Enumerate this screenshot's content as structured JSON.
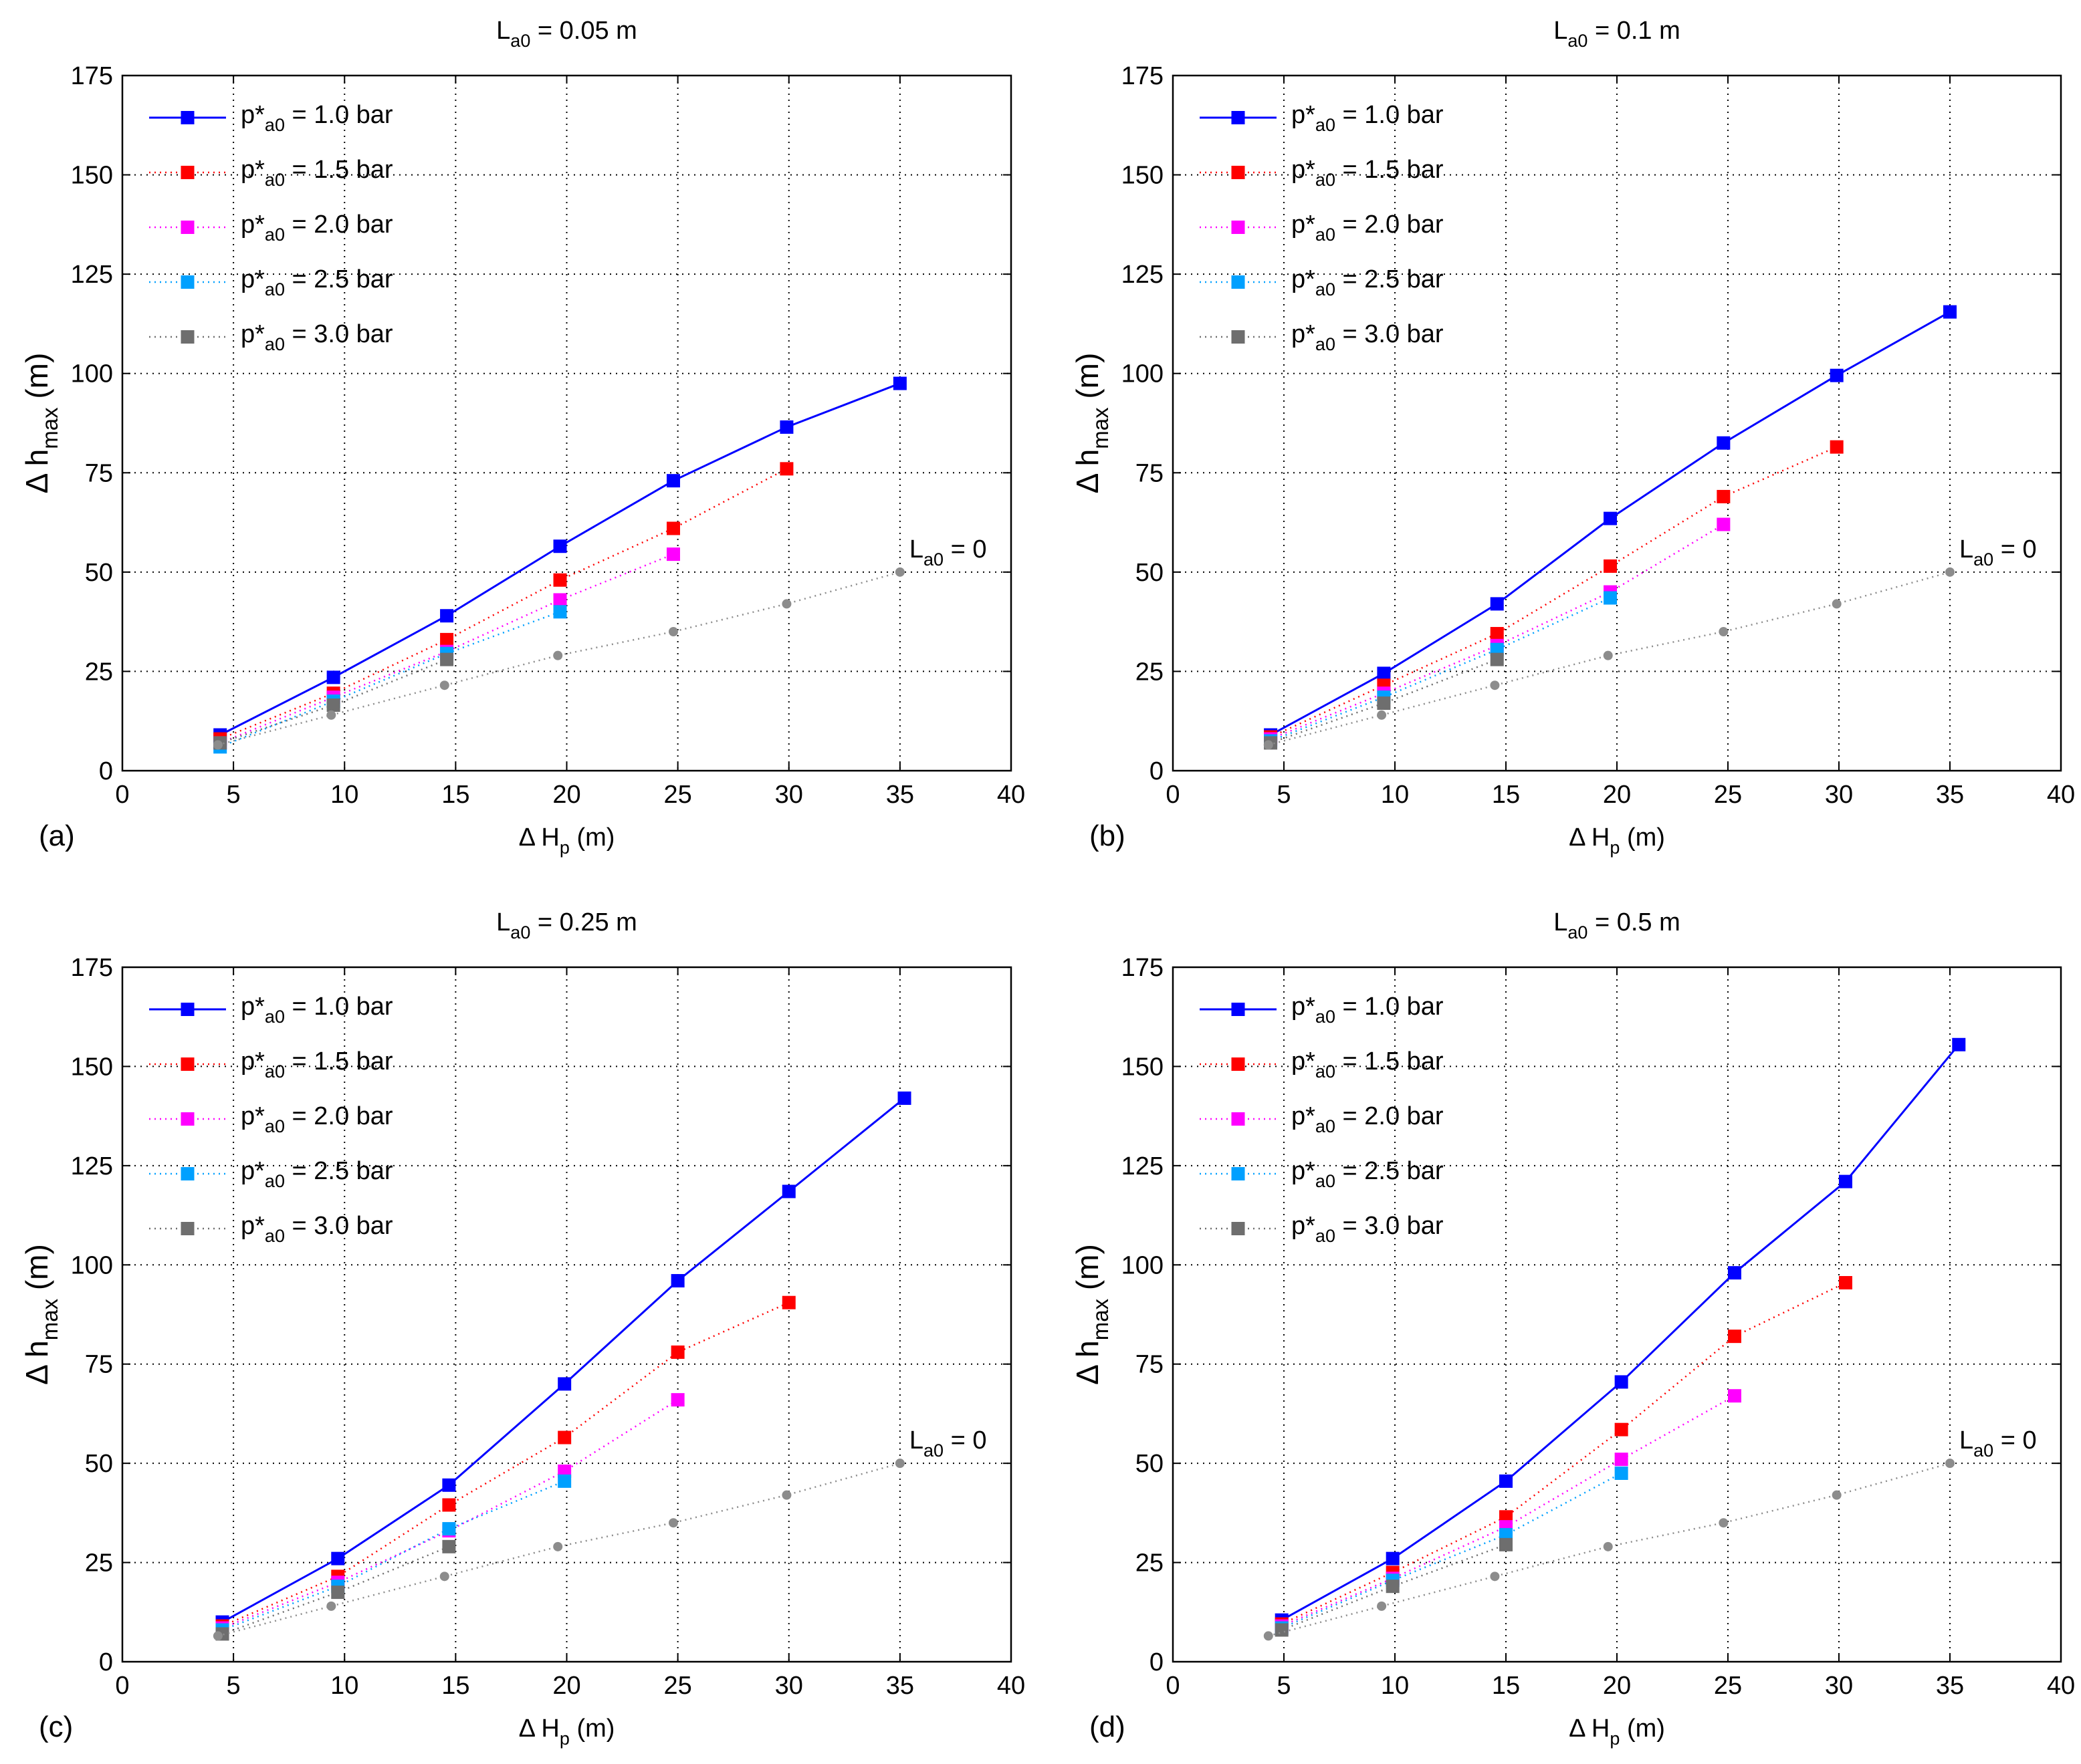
{
  "figure": {
    "panels": [
      "(a)",
      "(b)",
      "(c)",
      "(d)"
    ]
  },
  "chart_data": [
    {
      "type": "line",
      "panel_label": "(a)",
      "title": {
        "base": "L",
        "sub": "a0",
        "rest": " = 0.05 m"
      },
      "xlabel": {
        "base": "Δ H",
        "sub": "p",
        "rest": " (m)"
      },
      "ylabel": {
        "base": "Δ h",
        "sub": "max",
        "rest": " (m)"
      },
      "xlim": [
        0,
        40
      ],
      "ylim": [
        0,
        175
      ],
      "xticks": [
        "0",
        "5",
        "10",
        "15",
        "20",
        "25",
        "30",
        "35",
        "40"
      ],
      "yticks": [
        "0",
        "25",
        "50",
        "75",
        "100",
        "125",
        "150",
        "175"
      ],
      "grid": true,
      "legend_position": "top-left",
      "reference_label": {
        "base": "L",
        "sub": "a0",
        "rest": " = 0"
      },
      "series": [
        {
          "legend": {
            "base": "p*",
            "sub": "a0",
            "rest": " = 1.0 bar"
          },
          "color": "#0000ff",
          "line": "solid",
          "x": [
            4.4,
            9.5,
            14.6,
            19.7,
            24.8,
            29.9,
            35.0
          ],
          "y": [
            9,
            23.5,
            39,
            56.5,
            73,
            86.5,
            97.5
          ]
        },
        {
          "legend": {
            "base": "p*",
            "sub": "a0",
            "rest": " = 1.5 bar"
          },
          "color": "#ff0000",
          "line": "dotted",
          "x": [
            4.4,
            9.5,
            14.6,
            19.7,
            24.8,
            29.9
          ],
          "y": [
            8,
            19.5,
            33,
            48,
            61,
            76
          ]
        },
        {
          "legend": {
            "base": "p*",
            "sub": "a0",
            "rest": " = 2.0 bar"
          },
          "color": "#ff00ff",
          "line": "dotted",
          "x": [
            4.4,
            9.5,
            14.6,
            19.7,
            24.8
          ],
          "y": [
            7,
            18.5,
            30,
            43,
            54.5
          ]
        },
        {
          "legend": {
            "base": "p*",
            "sub": "a0",
            "rest": " = 2.5 bar"
          },
          "color": "#00a0ff",
          "line": "dotted",
          "x": [
            4.4,
            9.5,
            14.6,
            19.7
          ],
          "y": [
            6,
            17.5,
            29.5,
            40
          ]
        },
        {
          "legend": {
            "base": "p*",
            "sub": "a0",
            "rest": " = 3.0 bar"
          },
          "color": "#6e6e6e",
          "line": "dotted",
          "x": [
            4.4,
            9.5,
            14.6
          ],
          "y": [
            7,
            16.5,
            28
          ]
        },
        {
          "legend": null,
          "color": "#8c8c8c",
          "line": "dotted",
          "marker": "dot",
          "x": [
            4.3,
            9.4,
            14.5,
            19.6,
            24.8,
            29.9,
            35.0
          ],
          "y": [
            6.5,
            14,
            21.5,
            29,
            35,
            42,
            50
          ]
        }
      ]
    },
    {
      "type": "line",
      "panel_label": "(b)",
      "title": {
        "base": "L",
        "sub": "a0",
        "rest": " = 0.1 m"
      },
      "xlabel": {
        "base": "Δ H",
        "sub": "p",
        "rest": " (m)"
      },
      "ylabel": {
        "base": "Δ h",
        "sub": "max",
        "rest": " (m)"
      },
      "xlim": [
        0,
        40
      ],
      "ylim": [
        0,
        175
      ],
      "xticks": [
        "0",
        "5",
        "10",
        "15",
        "20",
        "25",
        "30",
        "35",
        "40"
      ],
      "yticks": [
        "0",
        "25",
        "50",
        "75",
        "100",
        "125",
        "150",
        "175"
      ],
      "grid": true,
      "legend_position": "top-left",
      "reference_label": {
        "base": "L",
        "sub": "a0",
        "rest": " = 0"
      },
      "series": [
        {
          "legend": {
            "base": "p*",
            "sub": "a0",
            "rest": " = 1.0 bar"
          },
          "color": "#0000ff",
          "line": "solid",
          "x": [
            4.4,
            9.5,
            14.6,
            19.7,
            24.8,
            29.9,
            35.0
          ],
          "y": [
            9,
            24.5,
            42,
            63.5,
            82.5,
            99.5,
            115.5
          ]
        },
        {
          "legend": {
            "base": "p*",
            "sub": "a0",
            "rest": " = 1.5 bar"
          },
          "color": "#ff0000",
          "line": "dotted",
          "x": [
            4.4,
            9.5,
            14.6,
            19.7,
            24.8,
            29.9
          ],
          "y": [
            8.5,
            21.5,
            34.5,
            51.5,
            69,
            81.5
          ]
        },
        {
          "legend": {
            "base": "p*",
            "sub": "a0",
            "rest": " = 2.0 bar"
          },
          "color": "#ff00ff",
          "line": "dotted",
          "x": [
            4.4,
            9.5,
            14.6,
            19.7,
            24.8
          ],
          "y": [
            8,
            19.5,
            31.5,
            45,
            62
          ]
        },
        {
          "legend": {
            "base": "p*",
            "sub": "a0",
            "rest": " = 2.5 bar"
          },
          "color": "#00a0ff",
          "line": "dotted",
          "x": [
            4.4,
            9.5,
            14.6,
            19.7
          ],
          "y": [
            7.5,
            18.5,
            30.5,
            43.5
          ]
        },
        {
          "legend": {
            "base": "p*",
            "sub": "a0",
            "rest": " = 3.0 bar"
          },
          "color": "#6e6e6e",
          "line": "dotted",
          "x": [
            4.4,
            9.5,
            14.6
          ],
          "y": [
            7,
            17,
            28
          ]
        },
        {
          "legend": null,
          "color": "#8c8c8c",
          "line": "dotted",
          "marker": "dot",
          "x": [
            4.3,
            9.4,
            14.5,
            19.6,
            24.8,
            29.9,
            35.0
          ],
          "y": [
            6.5,
            14,
            21.5,
            29,
            35,
            42,
            50
          ]
        }
      ]
    },
    {
      "type": "line",
      "panel_label": "(c)",
      "title": {
        "base": "L",
        "sub": "a0",
        "rest": " = 0.25 m"
      },
      "xlabel": {
        "base": "Δ H",
        "sub": "p",
        "rest": " (m)"
      },
      "ylabel": {
        "base": "Δ h",
        "sub": "max",
        "rest": " (m)"
      },
      "xlim": [
        0,
        40
      ],
      "ylim": [
        0,
        175
      ],
      "xticks": [
        "0",
        "5",
        "10",
        "15",
        "20",
        "25",
        "30",
        "35",
        "40"
      ],
      "yticks": [
        "0",
        "25",
        "50",
        "75",
        "100",
        "125",
        "150",
        "175"
      ],
      "grid": true,
      "legend_position": "top-left",
      "reference_label": {
        "base": "L",
        "sub": "a0",
        "rest": " = 0"
      },
      "series": [
        {
          "legend": {
            "base": "p*",
            "sub": "a0",
            "rest": " = 1.0 bar"
          },
          "color": "#0000ff",
          "line": "solid",
          "x": [
            4.5,
            9.7,
            14.7,
            19.9,
            25.0,
            30.0,
            35.2
          ],
          "y": [
            10,
            26,
            44.5,
            70,
            96,
            118.5,
            142
          ]
        },
        {
          "legend": {
            "base": "p*",
            "sub": "a0",
            "rest": " = 1.5 bar"
          },
          "color": "#ff0000",
          "line": "dotted",
          "x": [
            4.5,
            9.7,
            14.7,
            19.9,
            25.0,
            30.0
          ],
          "y": [
            9,
            21.5,
            39.5,
            56.5,
            78,
            90.5
          ]
        },
        {
          "legend": {
            "base": "p*",
            "sub": "a0",
            "rest": " = 2.0 bar"
          },
          "color": "#ff00ff",
          "line": "dotted",
          "x": [
            4.5,
            9.7,
            14.7,
            19.9,
            25.0
          ],
          "y": [
            8.5,
            20,
            33,
            48,
            66
          ]
        },
        {
          "legend": {
            "base": "p*",
            "sub": "a0",
            "rest": " = 2.5 bar"
          },
          "color": "#00a0ff",
          "line": "dotted",
          "x": [
            4.5,
            9.7,
            14.7,
            19.9
          ],
          "y": [
            8,
            19,
            33.5,
            45.5
          ]
        },
        {
          "legend": {
            "base": "p*",
            "sub": "a0",
            "rest": " = 3.0 bar"
          },
          "color": "#6e6e6e",
          "line": "dotted",
          "x": [
            4.5,
            9.7,
            14.7
          ],
          "y": [
            7,
            17.5,
            29
          ]
        },
        {
          "legend": null,
          "color": "#8c8c8c",
          "line": "dotted",
          "marker": "dot",
          "x": [
            4.3,
            9.4,
            14.5,
            19.6,
            24.8,
            29.9,
            35.0
          ],
          "y": [
            6.5,
            14,
            21.5,
            29,
            35,
            42,
            50
          ]
        }
      ]
    },
    {
      "type": "line",
      "panel_label": "(d)",
      "title": {
        "base": "L",
        "sub": "a0",
        "rest": " = 0.5 m"
      },
      "xlabel": {
        "base": "Δ H",
        "sub": "p",
        "rest": " (m)"
      },
      "ylabel": {
        "base": "Δ h",
        "sub": "max",
        "rest": " (m)"
      },
      "xlim": [
        0,
        40
      ],
      "ylim": [
        0,
        175
      ],
      "xticks": [
        "0",
        "5",
        "10",
        "15",
        "20",
        "25",
        "30",
        "35",
        "40"
      ],
      "yticks": [
        "0",
        "25",
        "50",
        "75",
        "100",
        "125",
        "150",
        "175"
      ],
      "grid": true,
      "legend_position": "top-left",
      "reference_label": {
        "base": "L",
        "sub": "a0",
        "rest": " = 0"
      },
      "series": [
        {
          "legend": {
            "base": "p*",
            "sub": "a0",
            "rest": " = 1.0 bar"
          },
          "color": "#0000ff",
          "line": "solid",
          "x": [
            4.9,
            9.9,
            15.0,
            20.2,
            25.3,
            30.3,
            35.4
          ],
          "y": [
            10.5,
            26,
            45.5,
            70.5,
            98,
            121,
            155.5
          ]
        },
        {
          "legend": {
            "base": "p*",
            "sub": "a0",
            "rest": " = 1.5 bar"
          },
          "color": "#ff0000",
          "line": "dotted",
          "x": [
            4.9,
            9.9,
            15.0,
            20.2,
            25.3,
            30.3
          ],
          "y": [
            9.5,
            22.5,
            36.5,
            58.5,
            82,
            95.5
          ]
        },
        {
          "legend": {
            "base": "p*",
            "sub": "a0",
            "rest": " = 2.0 bar"
          },
          "color": "#ff00ff",
          "line": "dotted",
          "x": [
            4.9,
            9.9,
            15.0,
            20.2,
            25.3
          ],
          "y": [
            9,
            21,
            34,
            51,
            67
          ]
        },
        {
          "legend": {
            "base": "p*",
            "sub": "a0",
            "rest": " = 2.5 bar"
          },
          "color": "#00a0ff",
          "line": "dotted",
          "x": [
            4.9,
            9.9,
            15.0,
            20.2
          ],
          "y": [
            8.5,
            20.5,
            32,
            47.5
          ]
        },
        {
          "legend": {
            "base": "p*",
            "sub": "a0",
            "rest": " = 3.0 bar"
          },
          "color": "#6e6e6e",
          "line": "dotted",
          "x": [
            4.9,
            9.9,
            15.0
          ],
          "y": [
            8,
            19,
            29.5
          ]
        },
        {
          "legend": null,
          "color": "#8c8c8c",
          "line": "dotted",
          "marker": "dot",
          "x": [
            4.3,
            9.4,
            14.5,
            19.6,
            24.8,
            29.9,
            35.0
          ],
          "y": [
            6.5,
            14,
            21.5,
            29,
            35,
            42,
            50
          ]
        }
      ]
    }
  ]
}
